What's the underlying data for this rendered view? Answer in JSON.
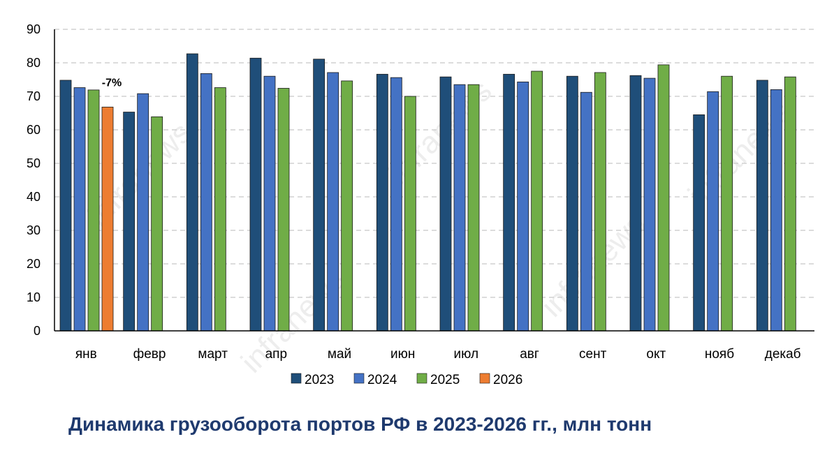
{
  "title": "Динамика  грузооборота портов РФ в 2023-2026 гг., млн тонн",
  "chart_data": {
    "type": "bar",
    "title": "Динамика  грузооборота портов РФ в 2023-2026 гг., млн тонн",
    "xlabel": "",
    "ylabel": "",
    "ylim": [
      0,
      90
    ],
    "yticks": [
      "0",
      "10",
      "20",
      "30",
      "40",
      "50",
      "60",
      "70",
      "80",
      "90"
    ],
    "grid": true,
    "legend_position": "bottom",
    "categories": [
      "янв",
      "февр",
      "март",
      "апр",
      "май",
      "июн",
      "июл",
      "авг",
      "сент",
      "окт",
      "нояб",
      "декаб"
    ],
    "series": [
      {
        "name": "2023",
        "color": "#1f4e79",
        "values": [
          74.8,
          65.3,
          82.7,
          81.4,
          81.1,
          76.6,
          75.8,
          76.6,
          76.0,
          76.2,
          64.5,
          74.8
        ]
      },
      {
        "name": "2024",
        "color": "#4472c4",
        "values": [
          72.6,
          70.8,
          76.8,
          76.0,
          77.1,
          75.6,
          73.5,
          74.3,
          71.2,
          75.4,
          71.4,
          72.0
        ]
      },
      {
        "name": "2025",
        "color": "#70ad47",
        "values": [
          71.9,
          63.9,
          72.6,
          72.4,
          74.6,
          70.0,
          73.5,
          77.5,
          77.1,
          79.4,
          76.0,
          75.8
        ]
      },
      {
        "name": "2026",
        "color": "#ed7d31",
        "values": [
          66.8,
          null,
          null,
          null,
          null,
          null,
          null,
          null,
          null,
          null,
          null,
          null
        ]
      }
    ],
    "annotations": [
      {
        "text": "-7%",
        "category": "янв",
        "series": "2026"
      }
    ]
  },
  "watermark": "infranews"
}
